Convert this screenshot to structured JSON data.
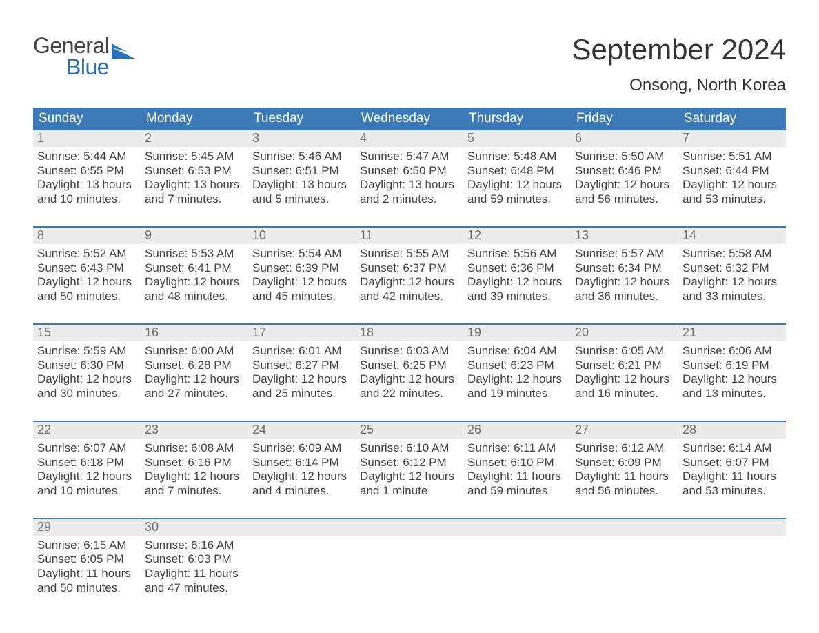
{
  "brand": {
    "text_general": "General",
    "text_blue": "Blue",
    "color_general": "#444444",
    "color_blue": "#2a6fb7"
  },
  "title": {
    "month_year": "September 2024",
    "location": "Onsong, North Korea"
  },
  "colors": {
    "header_bg": "#3b79b7",
    "header_text": "#ffffff",
    "daynum_bg": "#ececec",
    "daynum_text": "#6c6c6c",
    "body_text": "#444444",
    "page_bg": "#ffffff",
    "separator": "#3b79b7"
  },
  "typography": {
    "month_title_pt": 42,
    "location_pt": 24,
    "dow_pt": 19,
    "daynum_pt": 18,
    "cell_pt": 17
  },
  "days_of_week": [
    "Sunday",
    "Monday",
    "Tuesday",
    "Wednesday",
    "Thursday",
    "Friday",
    "Saturday"
  ],
  "weeks": [
    [
      {
        "num": "1",
        "sunrise": "Sunrise: 5:44 AM",
        "sunset": "Sunset: 6:55 PM",
        "day1": "Daylight: 13 hours",
        "day2": "and 10 minutes."
      },
      {
        "num": "2",
        "sunrise": "Sunrise: 5:45 AM",
        "sunset": "Sunset: 6:53 PM",
        "day1": "Daylight: 13 hours",
        "day2": "and 7 minutes."
      },
      {
        "num": "3",
        "sunrise": "Sunrise: 5:46 AM",
        "sunset": "Sunset: 6:51 PM",
        "day1": "Daylight: 13 hours",
        "day2": "and 5 minutes."
      },
      {
        "num": "4",
        "sunrise": "Sunrise: 5:47 AM",
        "sunset": "Sunset: 6:50 PM",
        "day1": "Daylight: 13 hours",
        "day2": "and 2 minutes."
      },
      {
        "num": "5",
        "sunrise": "Sunrise: 5:48 AM",
        "sunset": "Sunset: 6:48 PM",
        "day1": "Daylight: 12 hours",
        "day2": "and 59 minutes."
      },
      {
        "num": "6",
        "sunrise": "Sunrise: 5:50 AM",
        "sunset": "Sunset: 6:46 PM",
        "day1": "Daylight: 12 hours",
        "day2": "and 56 minutes."
      },
      {
        "num": "7",
        "sunrise": "Sunrise: 5:51 AM",
        "sunset": "Sunset: 6:44 PM",
        "day1": "Daylight: 12 hours",
        "day2": "and 53 minutes."
      }
    ],
    [
      {
        "num": "8",
        "sunrise": "Sunrise: 5:52 AM",
        "sunset": "Sunset: 6:43 PM",
        "day1": "Daylight: 12 hours",
        "day2": "and 50 minutes."
      },
      {
        "num": "9",
        "sunrise": "Sunrise: 5:53 AM",
        "sunset": "Sunset: 6:41 PM",
        "day1": "Daylight: 12 hours",
        "day2": "and 48 minutes."
      },
      {
        "num": "10",
        "sunrise": "Sunrise: 5:54 AM",
        "sunset": "Sunset: 6:39 PM",
        "day1": "Daylight: 12 hours",
        "day2": "and 45 minutes."
      },
      {
        "num": "11",
        "sunrise": "Sunrise: 5:55 AM",
        "sunset": "Sunset: 6:37 PM",
        "day1": "Daylight: 12 hours",
        "day2": "and 42 minutes."
      },
      {
        "num": "12",
        "sunrise": "Sunrise: 5:56 AM",
        "sunset": "Sunset: 6:36 PM",
        "day1": "Daylight: 12 hours",
        "day2": "and 39 minutes."
      },
      {
        "num": "13",
        "sunrise": "Sunrise: 5:57 AM",
        "sunset": "Sunset: 6:34 PM",
        "day1": "Daylight: 12 hours",
        "day2": "and 36 minutes."
      },
      {
        "num": "14",
        "sunrise": "Sunrise: 5:58 AM",
        "sunset": "Sunset: 6:32 PM",
        "day1": "Daylight: 12 hours",
        "day2": "and 33 minutes."
      }
    ],
    [
      {
        "num": "15",
        "sunrise": "Sunrise: 5:59 AM",
        "sunset": "Sunset: 6:30 PM",
        "day1": "Daylight: 12 hours",
        "day2": "and 30 minutes."
      },
      {
        "num": "16",
        "sunrise": "Sunrise: 6:00 AM",
        "sunset": "Sunset: 6:28 PM",
        "day1": "Daylight: 12 hours",
        "day2": "and 27 minutes."
      },
      {
        "num": "17",
        "sunrise": "Sunrise: 6:01 AM",
        "sunset": "Sunset: 6:27 PM",
        "day1": "Daylight: 12 hours",
        "day2": "and 25 minutes."
      },
      {
        "num": "18",
        "sunrise": "Sunrise: 6:03 AM",
        "sunset": "Sunset: 6:25 PM",
        "day1": "Daylight: 12 hours",
        "day2": "and 22 minutes."
      },
      {
        "num": "19",
        "sunrise": "Sunrise: 6:04 AM",
        "sunset": "Sunset: 6:23 PM",
        "day1": "Daylight: 12 hours",
        "day2": "and 19 minutes."
      },
      {
        "num": "20",
        "sunrise": "Sunrise: 6:05 AM",
        "sunset": "Sunset: 6:21 PM",
        "day1": "Daylight: 12 hours",
        "day2": "and 16 minutes."
      },
      {
        "num": "21",
        "sunrise": "Sunrise: 6:06 AM",
        "sunset": "Sunset: 6:19 PM",
        "day1": "Daylight: 12 hours",
        "day2": "and 13 minutes."
      }
    ],
    [
      {
        "num": "22",
        "sunrise": "Sunrise: 6:07 AM",
        "sunset": "Sunset: 6:18 PM",
        "day1": "Daylight: 12 hours",
        "day2": "and 10 minutes."
      },
      {
        "num": "23",
        "sunrise": "Sunrise: 6:08 AM",
        "sunset": "Sunset: 6:16 PM",
        "day1": "Daylight: 12 hours",
        "day2": "and 7 minutes."
      },
      {
        "num": "24",
        "sunrise": "Sunrise: 6:09 AM",
        "sunset": "Sunset: 6:14 PM",
        "day1": "Daylight: 12 hours",
        "day2": "and 4 minutes."
      },
      {
        "num": "25",
        "sunrise": "Sunrise: 6:10 AM",
        "sunset": "Sunset: 6:12 PM",
        "day1": "Daylight: 12 hours",
        "day2": "and 1 minute."
      },
      {
        "num": "26",
        "sunrise": "Sunrise: 6:11 AM",
        "sunset": "Sunset: 6:10 PM",
        "day1": "Daylight: 11 hours",
        "day2": "and 59 minutes."
      },
      {
        "num": "27",
        "sunrise": "Sunrise: 6:12 AM",
        "sunset": "Sunset: 6:09 PM",
        "day1": "Daylight: 11 hours",
        "day2": "and 56 minutes."
      },
      {
        "num": "28",
        "sunrise": "Sunrise: 6:14 AM",
        "sunset": "Sunset: 6:07 PM",
        "day1": "Daylight: 11 hours",
        "day2": "and 53 minutes."
      }
    ],
    [
      {
        "num": "29",
        "sunrise": "Sunrise: 6:15 AM",
        "sunset": "Sunset: 6:05 PM",
        "day1": "Daylight: 11 hours",
        "day2": "and 50 minutes."
      },
      {
        "num": "30",
        "sunrise": "Sunrise: 6:16 AM",
        "sunset": "Sunset: 6:03 PM",
        "day1": "Daylight: 11 hours",
        "day2": "and 47 minutes."
      },
      {
        "num": "",
        "sunrise": "",
        "sunset": "",
        "day1": "",
        "day2": ""
      },
      {
        "num": "",
        "sunrise": "",
        "sunset": "",
        "day1": "",
        "day2": ""
      },
      {
        "num": "",
        "sunrise": "",
        "sunset": "",
        "day1": "",
        "day2": ""
      },
      {
        "num": "",
        "sunrise": "",
        "sunset": "",
        "day1": "",
        "day2": ""
      },
      {
        "num": "",
        "sunrise": "",
        "sunset": "",
        "day1": "",
        "day2": ""
      }
    ]
  ]
}
